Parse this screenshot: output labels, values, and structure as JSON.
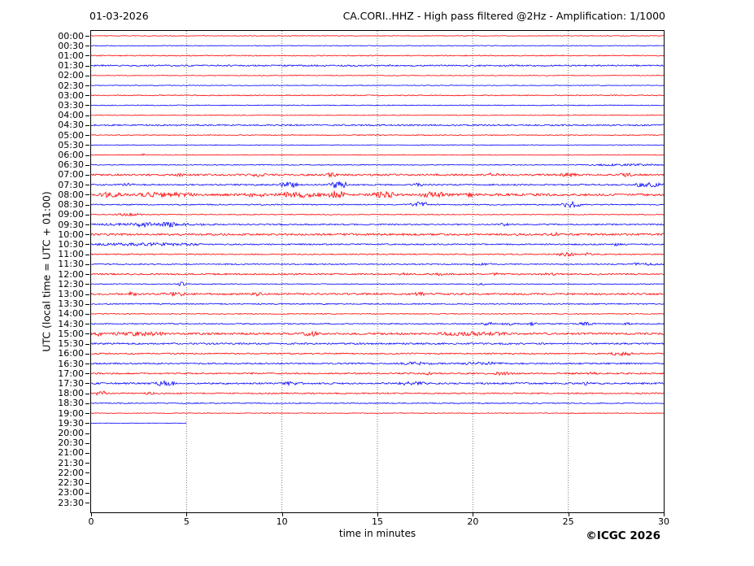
{
  "header": {
    "date": "01-03-2026",
    "title": "CA.CORI..HHZ - High pass filtered @2Hz - Amplification: 1/1000"
  },
  "footer": {
    "copyright": "©ICGC 2026"
  },
  "chart_data": {
    "type": "line",
    "subtype": "helicorder-dayplot",
    "title": "CA.CORI..HHZ - High pass filtered @2Hz - Amplification: 1/1000",
    "date": "01-03-2026",
    "xlabel": "time in minutes",
    "ylabel": "UTC (local time = UTC + 01:00)",
    "xlim": [
      0,
      30
    ],
    "x_ticks": [
      0,
      5,
      10,
      15,
      20,
      25,
      30
    ],
    "grid": "vertical dotted lines at 5-minute intervals",
    "legend": "none",
    "colors": {
      "red": "#ff0000",
      "blue": "#0000ff",
      "grid": "#555555",
      "axis": "#000000"
    },
    "rows_note": "48 half-hour traces; noise = background amplitude (px), events = [start_min, end_min, peak_amplitude_px]; end = minutes of data drawn",
    "rows": [
      {
        "label": "00:00",
        "color": "red",
        "noise": 0.4,
        "end": 30,
        "events": []
      },
      {
        "label": "00:30",
        "color": "blue",
        "noise": 0.4,
        "end": 30,
        "events": []
      },
      {
        "label": "01:00",
        "color": "red",
        "noise": 0.6,
        "end": 30,
        "events": []
      },
      {
        "label": "01:30",
        "color": "blue",
        "noise": 0.9,
        "end": 30,
        "events": []
      },
      {
        "label": "02:00",
        "color": "red",
        "noise": 0.4,
        "end": 30,
        "events": []
      },
      {
        "label": "02:30",
        "color": "blue",
        "noise": 0.4,
        "end": 30,
        "events": []
      },
      {
        "label": "03:00",
        "color": "red",
        "noise": 0.6,
        "end": 30,
        "events": []
      },
      {
        "label": "03:30",
        "color": "blue",
        "noise": 0.5,
        "end": 30,
        "events": []
      },
      {
        "label": "04:00",
        "color": "red",
        "noise": 0.4,
        "end": 30,
        "events": []
      },
      {
        "label": "04:30",
        "color": "blue",
        "noise": 0.9,
        "end": 30,
        "events": []
      },
      {
        "label": "05:00",
        "color": "red",
        "noise": 0.5,
        "end": 30,
        "events": []
      },
      {
        "label": "05:30",
        "color": "blue",
        "noise": 0.4,
        "end": 30,
        "events": []
      },
      {
        "label": "06:00",
        "color": "red",
        "noise": 0.4,
        "end": 30,
        "events": [
          [
            2.6,
            3.0,
            1.2
          ]
        ]
      },
      {
        "label": "06:30",
        "color": "blue",
        "noise": 0.5,
        "end": 30,
        "events": [
          [
            26,
            30,
            0.8
          ]
        ]
      },
      {
        "label": "07:00",
        "color": "red",
        "noise": 1.1,
        "end": 30,
        "events": [
          [
            4.3,
            4.9,
            1.6
          ],
          [
            8.3,
            9.2,
            1.4
          ],
          [
            12.3,
            13.0,
            1.6
          ],
          [
            20.7,
            21.4,
            1.6
          ],
          [
            24.5,
            25.5,
            1.2
          ],
          [
            27.5,
            28.5,
            1.2
          ]
        ]
      },
      {
        "label": "07:30",
        "color": "blue",
        "noise": 0.9,
        "end": 30,
        "events": [
          [
            1.6,
            2.3,
            1.2
          ],
          [
            9.8,
            10.9,
            2.8
          ],
          [
            12.4,
            13.5,
            4.5
          ],
          [
            16.9,
            17.4,
            1.3
          ],
          [
            28.4,
            30,
            2.2
          ]
        ]
      },
      {
        "label": "08:00",
        "color": "red",
        "noise": 1.4,
        "end": 30,
        "events": [
          [
            0.4,
            1.6,
            2.2
          ],
          [
            2.3,
            5.6,
            2.0
          ],
          [
            8.0,
            9.1,
            1.8
          ],
          [
            9.6,
            12.2,
            2.2
          ],
          [
            12.4,
            13.3,
            4.0
          ],
          [
            14.7,
            16.2,
            2.6
          ],
          [
            17.1,
            18.8,
            2.4
          ],
          [
            19.6,
            20.1,
            1.4
          ]
        ]
      },
      {
        "label": "08:30",
        "color": "blue",
        "noise": 0.7,
        "end": 30,
        "events": [
          [
            16.7,
            17.7,
            3.2
          ],
          [
            24.6,
            25.7,
            3.2
          ]
        ]
      },
      {
        "label": "09:00",
        "color": "red",
        "noise": 0.5,
        "end": 30,
        "events": [
          [
            1.2,
            2.7,
            1.3
          ]
        ]
      },
      {
        "label": "09:30",
        "color": "blue",
        "noise": 0.8,
        "end": 30,
        "events": [
          [
            0,
            6.8,
            1.0
          ],
          [
            2.3,
            3.2,
            1.6
          ],
          [
            3.7,
            4.4,
            2.0
          ],
          [
            21.4,
            21.9,
            1.1
          ]
        ]
      },
      {
        "label": "10:00",
        "color": "red",
        "noise": 1.2,
        "end": 30,
        "events": [
          [
            24.1,
            24.5,
            1.4
          ]
        ]
      },
      {
        "label": "10:30",
        "color": "blue",
        "noise": 0.8,
        "end": 30,
        "events": [
          [
            0,
            6,
            1.2
          ],
          [
            27.2,
            27.8,
            1.0
          ]
        ]
      },
      {
        "label": "11:00",
        "color": "red",
        "noise": 0.7,
        "end": 30,
        "events": [
          [
            24.4,
            25.4,
            2.0
          ],
          [
            25.8,
            26.3,
            1.6
          ]
        ]
      },
      {
        "label": "11:30",
        "color": "blue",
        "noise": 0.7,
        "end": 30,
        "events": [
          [
            20,
            21.2,
            0.9
          ],
          [
            28,
            30,
            0.9
          ]
        ]
      },
      {
        "label": "12:00",
        "color": "red",
        "noise": 0.9,
        "end": 30,
        "events": [
          [
            16.1,
            16.6,
            1.3
          ],
          [
            18.0,
            18.5,
            1.1
          ],
          [
            21.0,
            21.6,
            1.3
          ],
          [
            23.5,
            24.5,
            1.0
          ]
        ]
      },
      {
        "label": "12:30",
        "color": "blue",
        "noise": 0.5,
        "end": 30,
        "events": [
          [
            4.5,
            5.0,
            2.2
          ],
          [
            20.2,
            20.7,
            0.9
          ]
        ]
      },
      {
        "label": "13:00",
        "color": "red",
        "noise": 1.1,
        "end": 30,
        "events": [
          [
            1.8,
            2.4,
            1.6
          ],
          [
            3.8,
            5.1,
            1.6
          ],
          [
            8.4,
            9.0,
            1.4
          ],
          [
            16.9,
            17.5,
            1.3
          ]
        ]
      },
      {
        "label": "13:30",
        "color": "blue",
        "noise": 0.7,
        "end": 30,
        "events": []
      },
      {
        "label": "14:00",
        "color": "red",
        "noise": 0.5,
        "end": 30,
        "events": []
      },
      {
        "label": "14:30",
        "color": "blue",
        "noise": 0.7,
        "end": 30,
        "events": [
          [
            20.4,
            21.1,
            1.6
          ],
          [
            21.5,
            22.3,
            1.8
          ],
          [
            22.8,
            23.4,
            1.4
          ],
          [
            25.4,
            26.4,
            1.4
          ],
          [
            27.8,
            28.4,
            1.2
          ]
        ]
      },
      {
        "label": "15:00",
        "color": "red",
        "noise": 1.2,
        "end": 30,
        "events": [
          [
            0.2,
            0.6,
            1.8
          ],
          [
            1.0,
            4.0,
            1.5
          ],
          [
            11.0,
            12.1,
            1.6
          ],
          [
            16.0,
            16.5,
            1.4
          ],
          [
            18.0,
            22.0,
            1.4
          ]
        ]
      },
      {
        "label": "15:30",
        "color": "blue",
        "noise": 1.0,
        "end": 30,
        "events": []
      },
      {
        "label": "16:00",
        "color": "red",
        "noise": 0.8,
        "end": 30,
        "events": [
          [
            27.2,
            28.4,
            2.0
          ]
        ]
      },
      {
        "label": "16:30",
        "color": "blue",
        "noise": 0.9,
        "end": 30,
        "events": [
          [
            16.0,
            18.0,
            1.2
          ],
          [
            19.5,
            21.6,
            1.3
          ]
        ]
      },
      {
        "label": "17:00",
        "color": "red",
        "noise": 0.9,
        "end": 30,
        "events": [
          [
            17.3,
            17.9,
            1.2
          ],
          [
            21.0,
            22.1,
            1.2
          ],
          [
            26.0,
            26.6,
            1.1
          ]
        ]
      },
      {
        "label": "17:30",
        "color": "blue",
        "noise": 1.0,
        "end": 30,
        "events": [
          [
            3.2,
            4.6,
            2.2
          ],
          [
            10.0,
            10.8,
            1.6
          ],
          [
            16.0,
            17.6,
            1.3
          ],
          [
            25.5,
            26.1,
            1.4
          ]
        ]
      },
      {
        "label": "18:00",
        "color": "red",
        "noise": 0.8,
        "end": 30,
        "events": [
          [
            0.2,
            0.9,
            2.2
          ],
          [
            2.8,
            3.3,
            1.2
          ]
        ]
      },
      {
        "label": "18:30",
        "color": "blue",
        "noise": 0.6,
        "end": 30,
        "events": []
      },
      {
        "label": "19:00",
        "color": "red",
        "noise": 0.4,
        "end": 30,
        "events": []
      },
      {
        "label": "19:30",
        "color": "blue",
        "noise": 0.15,
        "end": 5,
        "events": []
      },
      {
        "label": "20:00",
        "color": "red",
        "noise": 0,
        "end": 0,
        "events": []
      },
      {
        "label": "20:30",
        "color": "blue",
        "noise": 0,
        "end": 0,
        "events": []
      },
      {
        "label": "21:00",
        "color": "red",
        "noise": 0,
        "end": 0,
        "events": []
      },
      {
        "label": "21:30",
        "color": "blue",
        "noise": 0,
        "end": 0,
        "events": []
      },
      {
        "label": "22:00",
        "color": "red",
        "noise": 0,
        "end": 0,
        "events": []
      },
      {
        "label": "22:30",
        "color": "blue",
        "noise": 0,
        "end": 0,
        "events": []
      },
      {
        "label": "23:00",
        "color": "red",
        "noise": 0,
        "end": 0,
        "events": []
      },
      {
        "label": "23:30",
        "color": "blue",
        "noise": 0,
        "end": 0,
        "events": []
      }
    ]
  }
}
